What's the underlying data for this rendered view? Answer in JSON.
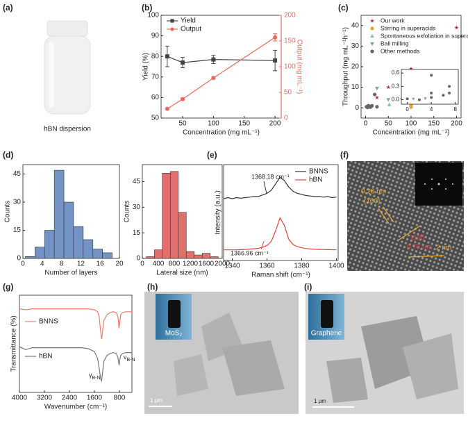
{
  "figure": {
    "panel_labels": [
      "(a)",
      "(b)",
      "(c)",
      "(d)",
      "(e)",
      "(f)",
      "(g)",
      "(h)",
      "(i)"
    ],
    "a_caption": "hBN dispersion",
    "f_labels": [
      "0.26 nm",
      "(100)",
      "1120",
      "0.76 nm",
      "2 nm"
    ],
    "h_labels": [
      "MoS₂",
      "1 μm"
    ],
    "i_labels": [
      "Graphene",
      "1 μm"
    ]
  },
  "chart_data": [
    {
      "type": "line",
      "xlabel": "Concentration (mg mL⁻¹)",
      "ylabel": "Yield (%)",
      "y2label": "Output (mg mL⁻¹)",
      "x": [
        25,
        50,
        100,
        200
      ],
      "series": [
        {
          "name": "Yield",
          "color": "#444444",
          "marker": "square",
          "values": [
            80,
            77,
            78.5,
            78
          ],
          "errors": [
            5,
            2.5,
            2,
            5
          ]
        },
        {
          "name": "Output",
          "color": "#e8695f",
          "marker": "circle",
          "axis": "y2",
          "values": [
            18,
            37,
            78,
            157
          ],
          "errors": [
            1,
            2,
            2,
            7
          ]
        }
      ],
      "xlim": [
        15,
        210
      ],
      "xticks": [
        50,
        100,
        150,
        200
      ],
      "ylim": [
        50,
        100
      ],
      "yticks": [
        50,
        60,
        70,
        80,
        90,
        100
      ],
      "y2lim": [
        0,
        200
      ],
      "y2ticks": [
        0,
        50,
        100,
        150,
        200
      ],
      "legend": "upper left"
    },
    {
      "type": "scatter",
      "xlabel": "Concentration (mg mL⁻¹)",
      "ylabel": "Throughput (mg mL⁻¹h⁻¹)",
      "series": [
        {
          "name": "Our work",
          "color": "#c0272d",
          "marker": "star",
          "x": [
            25,
            50,
            100,
            200
          ],
          "values": [
            5,
            10,
            19,
            39
          ]
        },
        {
          "name": "Stirring in superacids",
          "color": "#e8a33d",
          "marker": "circle",
          "x": [
            100,
            100
          ],
          "values": [
            0.3,
            1.2
          ]
        },
        {
          "name": "Spontaneous exfoliation in superacids",
          "color": "#7fc4a6",
          "marker": "triangle-up",
          "x": [
            52
          ],
          "values": [
            1.5
          ]
        },
        {
          "name": "Ball milling",
          "color": "#7f9fc9",
          "marker": "triangle-down",
          "x": [
            25,
            50,
            80
          ],
          "values": [
            9.5,
            4,
            4
          ]
        },
        {
          "name": "Other methods",
          "color": "#666666",
          "marker": "circle",
          "x": [
            2,
            4,
            6,
            8,
            10,
            12,
            14,
            20,
            25
          ],
          "values": [
            0.5,
            0.2,
            1,
            0.8,
            0.3,
            0.6,
            1,
            6.5,
            0.5
          ]
        }
      ],
      "xlim": [
        -10,
        210
      ],
      "xticks": [
        0,
        50,
        100,
        150,
        200
      ],
      "ylim": [
        -5,
        45
      ],
      "yticks": [
        0,
        10,
        20,
        30,
        40
      ],
      "legend": "upper left"
    },
    {
      "type": "scatter",
      "series": [
        {
          "color": "#7f9fc9",
          "marker": "triangle-down",
          "x": [
            1,
            3
          ],
          "values": [
            0.02,
            0.03
          ]
        },
        {
          "color": "#666666",
          "marker": "circle",
          "x": [
            0,
            2,
            4,
            4,
            4,
            6,
            7,
            7
          ],
          "values": [
            0.02,
            0.0,
            0.05,
            0.15,
            0.55,
            0.1,
            0.3,
            0.15
          ]
        }
      ],
      "xlim": [
        -1,
        8.5
      ],
      "xticks": [
        0,
        4,
        8
      ],
      "ylim": [
        -0.1,
        0.68
      ],
      "yticks": [
        {
          "value": 0,
          "label": "0.0"
        },
        0.3,
        0.6
      ]
    },
    {
      "type": "histogram",
      "xlabel": "Number of layers",
      "ylabel": "Counts",
      "color": "#7393c4",
      "bins": [
        0.5,
        2.5,
        4.5,
        6.5,
        8.5,
        10.5,
        12.5,
        14.5,
        16.5,
        18.5
      ],
      "values": [
        1,
        6,
        15,
        47,
        30,
        17,
        10,
        5,
        3
      ],
      "xlim": [
        0,
        20
      ],
      "xticks": [
        0,
        4,
        8,
        12,
        16,
        20
      ],
      "ylim": [
        0,
        50
      ],
      "yticks": [
        0,
        15,
        30,
        45
      ]
    },
    {
      "type": "histogram",
      "xlabel": "Lateral size (nm)",
      "ylabel": "Counts",
      "color": "#e0706c",
      "bins": [
        100,
        300,
        500,
        700,
        900,
        1100,
        1300,
        1500,
        1700,
        1900
      ],
      "values": [
        1,
        5,
        50,
        51,
        27,
        4,
        2,
        3,
        1
      ],
      "xlim": [
        0,
        2000
      ],
      "xticks": [
        0,
        400,
        800,
        1200,
        1600,
        2000
      ],
      "ylim": [
        0,
        55
      ],
      "yticks": [
        0,
        15,
        30,
        45
      ]
    },
    {
      "type": "line",
      "xlabel": "Raman shift (cm⁻¹)",
      "ylabel": "Intensity (a.u.)",
      "x": [
        1335,
        1337.5,
        1340,
        1342.5,
        1345,
        1347.5,
        1350,
        1352.5,
        1355,
        1357.5,
        1360,
        1362.5,
        1365,
        1367.5,
        1370,
        1372.5,
        1375,
        1377.5,
        1380,
        1382.5,
        1385,
        1387.5,
        1390,
        1392.5,
        1395,
        1397.5,
        1400
      ],
      "series": [
        {
          "name": "BNNS",
          "color": "#333333",
          "values": [
            0.58,
            0.59,
            0.58,
            0.59,
            0.585,
            0.59,
            0.595,
            0.6,
            0.6,
            0.615,
            0.63,
            0.66,
            0.72,
            0.78,
            0.75,
            0.69,
            0.65,
            0.63,
            0.62,
            0.61,
            0.605,
            0.6,
            0.6,
            0.595,
            0.6,
            0.59,
            0.595
          ]
        },
        {
          "name": "hBN",
          "color": "#e0463c",
          "values": [
            0.1,
            0.1,
            0.1,
            0.1,
            0.102,
            0.104,
            0.107,
            0.11,
            0.115,
            0.125,
            0.14,
            0.18,
            0.28,
            0.4,
            0.33,
            0.2,
            0.15,
            0.13,
            0.12,
            0.112,
            0.108,
            0.105,
            0.104,
            0.103,
            0.102,
            0.101,
            0.1
          ]
        }
      ],
      "xlim": [
        1335,
        1401
      ],
      "xticks": [
        1340,
        1360,
        1380,
        1400
      ],
      "ylim": [
        0,
        0.9
      ],
      "legend": "upper right",
      "annotations": [
        "1368.18 cm⁻¹",
        "1366.96 cm⁻¹"
      ]
    },
    {
      "type": "line",
      "xlabel": "Wavenumber (cm⁻¹)",
      "ylabel": "Transmittance (%)",
      "x": [
        4000,
        3800,
        3600,
        3400,
        3200,
        3000,
        2800,
        2600,
        2400,
        2200,
        2000,
        1800,
        1600,
        1500,
        1450,
        1400,
        1370,
        1340,
        1300,
        1200,
        1100,
        1000,
        900,
        850,
        810,
        790,
        760,
        700,
        600,
        500,
        400
      ],
      "series": [
        {
          "name": "BNNS",
          "color": "#ee7a70",
          "values": [
            0.86,
            0.85,
            0.86,
            0.86,
            0.86,
            0.86,
            0.86,
            0.86,
            0.86,
            0.86,
            0.86,
            0.86,
            0.85,
            0.83,
            0.78,
            0.62,
            0.55,
            0.63,
            0.74,
            0.8,
            0.82,
            0.83,
            0.82,
            0.78,
            0.66,
            0.72,
            0.8,
            0.82,
            0.83,
            0.83,
            0.83
          ]
        },
        {
          "name": "hBN",
          "color": "#777777",
          "values": [
            0.47,
            0.44,
            0.46,
            0.46,
            0.46,
            0.46,
            0.46,
            0.46,
            0.46,
            0.46,
            0.46,
            0.45,
            0.42,
            0.35,
            0.25,
            0.14,
            0.12,
            0.2,
            0.32,
            0.38,
            0.4,
            0.41,
            0.4,
            0.36,
            0.28,
            0.33,
            0.38,
            0.4,
            0.41,
            0.41,
            0.41
          ]
        }
      ],
      "xlim": [
        4000,
        400
      ],
      "xticks": [
        4000,
        3200,
        2400,
        1600,
        800
      ],
      "ylim": [
        0,
        1
      ],
      "legend": "left",
      "annotations": [
        {
          "symbol": "γ",
          "subscript": "B-N"
        },
        {
          "symbol": "ν",
          "subscript": "B-N"
        }
      ]
    }
  ]
}
